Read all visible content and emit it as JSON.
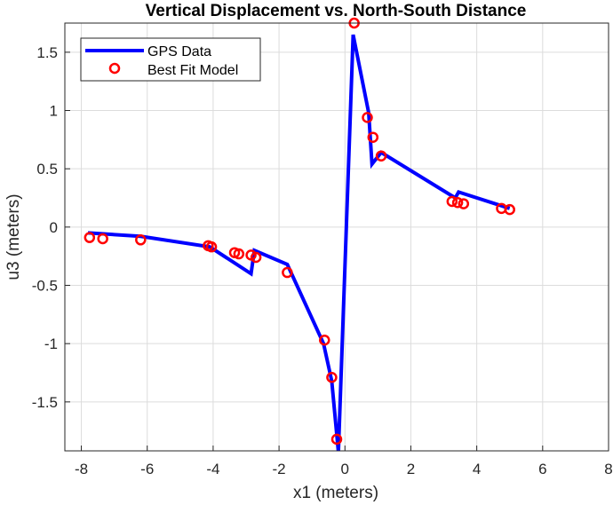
{
  "chart_data": {
    "type": "line",
    "title": "Vertical Displacement vs. North-South Distance",
    "xlabel": "x1 (meters)",
    "ylabel": "u3 (meters)",
    "xlim": [
      -8.5,
      8
    ],
    "ylim": [
      -1.92,
      1.75
    ],
    "xticks": [
      -8,
      -6,
      -4,
      -2,
      0,
      2,
      4,
      6,
      8
    ],
    "yticks": [
      -1.5,
      -1,
      -0.5,
      0,
      0.5,
      1,
      1.5
    ],
    "xtick_labels": [
      "-8",
      "-6",
      "-4",
      "-2",
      "0",
      "2",
      "4",
      "6",
      "8"
    ],
    "ytick_labels": [
      "-1.5",
      "-1",
      "-0.5",
      "0",
      "0.5",
      "1",
      "1.5"
    ],
    "grid": true,
    "legend_position": "top-left",
    "series": [
      {
        "name": "GPS Data",
        "style": "line",
        "color": "#0000ff",
        "x": [
          -7.8,
          -6.2,
          -4.1,
          -2.85,
          -2.75,
          -1.75,
          -0.65,
          -0.4,
          -0.2,
          0.25,
          0.72,
          0.82,
          1.1,
          3.35,
          3.45,
          5.0
        ],
        "y": [
          -0.05,
          -0.08,
          -0.17,
          -0.4,
          -0.2,
          -0.32,
          -1.0,
          -1.32,
          -1.93,
          1.65,
          0.98,
          0.54,
          0.64,
          0.25,
          0.3,
          0.16
        ]
      },
      {
        "name": "Best Fit Model",
        "style": "marker",
        "color": "#ff0000",
        "x": [
          -7.75,
          -7.35,
          -6.2,
          -4.15,
          -4.05,
          -3.35,
          -3.22,
          -2.85,
          -2.7,
          -1.75,
          -0.62,
          -0.4,
          -0.25,
          0.28,
          0.68,
          0.85,
          1.1,
          3.25,
          3.42,
          3.6,
          4.75,
          5.0
        ],
        "y": [
          -0.09,
          -0.1,
          -0.11,
          -0.16,
          -0.17,
          -0.22,
          -0.23,
          -0.24,
          -0.26,
          -0.39,
          -0.97,
          -1.29,
          -1.82,
          1.75,
          0.94,
          0.77,
          0.61,
          0.22,
          0.21,
          0.2,
          0.16,
          0.15
        ]
      }
    ]
  }
}
